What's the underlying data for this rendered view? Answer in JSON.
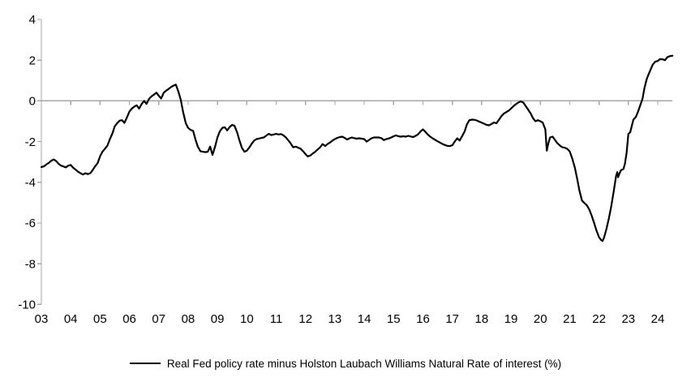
{
  "colors": {
    "line": "#000000",
    "axis": "#a6a6a6",
    "text": "#000000",
    "background": "#ffffff"
  },
  "legend": {
    "label": "Real Fed policy rate minus Holston Laubach Williams Natural Rate of interest (%)"
  },
  "chart_data": {
    "type": "line",
    "xlabel": "",
    "ylabel": "",
    "ylim": [
      -10,
      4
    ],
    "xlim": [
      2003.0,
      2024.6
    ],
    "grid": "zero-line-only",
    "legend_position": "bottom-center",
    "y_ticks": [
      4,
      2,
      0,
      -2,
      -4,
      -6,
      -8,
      -10
    ],
    "y_tick_labels": [
      "4",
      "2",
      "0",
      "-2",
      "-4",
      "-6",
      "-8",
      "-10"
    ],
    "x_tick_years": [
      2003,
      2004,
      2005,
      2006,
      2007,
      2008,
      2009,
      2010,
      2011,
      2012,
      2013,
      2014,
      2015,
      2016,
      2017,
      2018,
      2019,
      2020,
      2021,
      2022,
      2023,
      2024
    ],
    "x_tick_labels": [
      "03",
      "04",
      "05",
      "06",
      "07",
      "08",
      "09",
      "10",
      "11",
      "12",
      "13",
      "14",
      "15",
      "16",
      "17",
      "18",
      "19",
      "20",
      "21",
      "22",
      "23",
      "24"
    ],
    "series": [
      {
        "name": "Real Fed policy rate minus Holston Laubach Williams Natural Rate of interest (%)",
        "color": "#000000",
        "points": [
          [
            2003.0,
            -3.25
          ],
          [
            2003.08,
            -3.22
          ],
          [
            2003.17,
            -3.12
          ],
          [
            2003.25,
            -3.05
          ],
          [
            2003.33,
            -2.95
          ],
          [
            2003.42,
            -2.88
          ],
          [
            2003.5,
            -2.95
          ],
          [
            2003.58,
            -3.08
          ],
          [
            2003.67,
            -3.18
          ],
          [
            2003.75,
            -3.22
          ],
          [
            2003.83,
            -3.27
          ],
          [
            2003.92,
            -3.18
          ],
          [
            2004.0,
            -3.15
          ],
          [
            2004.08,
            -3.28
          ],
          [
            2004.17,
            -3.38
          ],
          [
            2004.25,
            -3.48
          ],
          [
            2004.33,
            -3.55
          ],
          [
            2004.42,
            -3.62
          ],
          [
            2004.5,
            -3.55
          ],
          [
            2004.58,
            -3.6
          ],
          [
            2004.67,
            -3.55
          ],
          [
            2004.75,
            -3.4
          ],
          [
            2004.83,
            -3.22
          ],
          [
            2004.92,
            -3.05
          ],
          [
            2005.0,
            -2.72
          ],
          [
            2005.08,
            -2.5
          ],
          [
            2005.17,
            -2.35
          ],
          [
            2005.25,
            -2.2
          ],
          [
            2005.33,
            -1.9
          ],
          [
            2005.42,
            -1.6
          ],
          [
            2005.5,
            -1.25
          ],
          [
            2005.58,
            -1.1
          ],
          [
            2005.67,
            -0.97
          ],
          [
            2005.75,
            -0.95
          ],
          [
            2005.83,
            -1.08
          ],
          [
            2005.92,
            -0.8
          ],
          [
            2006.0,
            -0.52
          ],
          [
            2006.08,
            -0.38
          ],
          [
            2006.17,
            -0.28
          ],
          [
            2006.25,
            -0.22
          ],
          [
            2006.33,
            -0.38
          ],
          [
            2006.42,
            -0.15
          ],
          [
            2006.5,
            0.0
          ],
          [
            2006.58,
            -0.15
          ],
          [
            2006.67,
            0.1
          ],
          [
            2006.75,
            0.22
          ],
          [
            2006.83,
            0.3
          ],
          [
            2006.92,
            0.4
          ],
          [
            2007.0,
            0.25
          ],
          [
            2007.08,
            0.12
          ],
          [
            2007.17,
            0.4
          ],
          [
            2007.25,
            0.5
          ],
          [
            2007.33,
            0.58
          ],
          [
            2007.42,
            0.68
          ],
          [
            2007.5,
            0.75
          ],
          [
            2007.58,
            0.8
          ],
          [
            2007.67,
            0.45
          ],
          [
            2007.75,
            0.05
          ],
          [
            2007.83,
            -0.55
          ],
          [
            2007.92,
            -1.1
          ],
          [
            2008.0,
            -1.33
          ],
          [
            2008.08,
            -1.42
          ],
          [
            2008.17,
            -1.47
          ],
          [
            2008.25,
            -1.9
          ],
          [
            2008.33,
            -2.25
          ],
          [
            2008.42,
            -2.48
          ],
          [
            2008.5,
            -2.5
          ],
          [
            2008.58,
            -2.52
          ],
          [
            2008.67,
            -2.5
          ],
          [
            2008.75,
            -2.25
          ],
          [
            2008.83,
            -2.65
          ],
          [
            2008.92,
            -2.25
          ],
          [
            2009.0,
            -1.8
          ],
          [
            2009.08,
            -1.5
          ],
          [
            2009.17,
            -1.32
          ],
          [
            2009.25,
            -1.3
          ],
          [
            2009.33,
            -1.45
          ],
          [
            2009.42,
            -1.28
          ],
          [
            2009.5,
            -1.18
          ],
          [
            2009.58,
            -1.22
          ],
          [
            2009.67,
            -1.55
          ],
          [
            2009.75,
            -1.95
          ],
          [
            2009.83,
            -2.3
          ],
          [
            2009.92,
            -2.5
          ],
          [
            2010.0,
            -2.45
          ],
          [
            2010.08,
            -2.3
          ],
          [
            2010.17,
            -2.1
          ],
          [
            2010.25,
            -1.95
          ],
          [
            2010.33,
            -1.88
          ],
          [
            2010.42,
            -1.85
          ],
          [
            2010.5,
            -1.82
          ],
          [
            2010.58,
            -1.8
          ],
          [
            2010.67,
            -1.7
          ],
          [
            2010.75,
            -1.62
          ],
          [
            2010.83,
            -1.68
          ],
          [
            2010.92,
            -1.65
          ],
          [
            2011.0,
            -1.62
          ],
          [
            2011.08,
            -1.65
          ],
          [
            2011.17,
            -1.63
          ],
          [
            2011.25,
            -1.7
          ],
          [
            2011.33,
            -1.8
          ],
          [
            2011.42,
            -1.95
          ],
          [
            2011.5,
            -2.1
          ],
          [
            2011.58,
            -2.28
          ],
          [
            2011.67,
            -2.25
          ],
          [
            2011.75,
            -2.3
          ],
          [
            2011.83,
            -2.35
          ],
          [
            2011.92,
            -2.48
          ],
          [
            2012.0,
            -2.62
          ],
          [
            2012.08,
            -2.73
          ],
          [
            2012.17,
            -2.68
          ],
          [
            2012.25,
            -2.58
          ],
          [
            2012.33,
            -2.5
          ],
          [
            2012.42,
            -2.38
          ],
          [
            2012.5,
            -2.28
          ],
          [
            2012.58,
            -2.12
          ],
          [
            2012.67,
            -2.22
          ],
          [
            2012.75,
            -2.12
          ],
          [
            2012.83,
            -2.05
          ],
          [
            2012.92,
            -1.95
          ],
          [
            2013.0,
            -1.88
          ],
          [
            2013.08,
            -1.82
          ],
          [
            2013.17,
            -1.78
          ],
          [
            2013.25,
            -1.76
          ],
          [
            2013.33,
            -1.82
          ],
          [
            2013.42,
            -1.9
          ],
          [
            2013.5,
            -1.84
          ],
          [
            2013.58,
            -1.8
          ],
          [
            2013.67,
            -1.84
          ],
          [
            2013.75,
            -1.86
          ],
          [
            2013.83,
            -1.84
          ],
          [
            2013.92,
            -1.86
          ],
          [
            2014.0,
            -1.88
          ],
          [
            2014.08,
            -2.0
          ],
          [
            2014.17,
            -1.92
          ],
          [
            2014.25,
            -1.84
          ],
          [
            2014.33,
            -1.8
          ],
          [
            2014.42,
            -1.8
          ],
          [
            2014.5,
            -1.8
          ],
          [
            2014.58,
            -1.83
          ],
          [
            2014.67,
            -1.93
          ],
          [
            2014.75,
            -1.88
          ],
          [
            2014.83,
            -1.85
          ],
          [
            2014.92,
            -1.8
          ],
          [
            2015.0,
            -1.74
          ],
          [
            2015.08,
            -1.7
          ],
          [
            2015.17,
            -1.74
          ],
          [
            2015.25,
            -1.76
          ],
          [
            2015.33,
            -1.74
          ],
          [
            2015.42,
            -1.76
          ],
          [
            2015.5,
            -1.72
          ],
          [
            2015.58,
            -1.75
          ],
          [
            2015.67,
            -1.78
          ],
          [
            2015.75,
            -1.72
          ],
          [
            2015.83,
            -1.65
          ],
          [
            2015.92,
            -1.5
          ],
          [
            2016.0,
            -1.4
          ],
          [
            2016.08,
            -1.52
          ],
          [
            2016.17,
            -1.66
          ],
          [
            2016.25,
            -1.76
          ],
          [
            2016.33,
            -1.84
          ],
          [
            2016.42,
            -1.92
          ],
          [
            2016.5,
            -1.99
          ],
          [
            2016.58,
            -2.05
          ],
          [
            2016.67,
            -2.12
          ],
          [
            2016.75,
            -2.17
          ],
          [
            2016.83,
            -2.21
          ],
          [
            2016.92,
            -2.22
          ],
          [
            2017.0,
            -2.18
          ],
          [
            2017.08,
            -2.0
          ],
          [
            2017.17,
            -1.84
          ],
          [
            2017.25,
            -1.95
          ],
          [
            2017.33,
            -1.75
          ],
          [
            2017.42,
            -1.5
          ],
          [
            2017.5,
            -1.15
          ],
          [
            2017.58,
            -0.95
          ],
          [
            2017.67,
            -0.92
          ],
          [
            2017.75,
            -0.93
          ],
          [
            2017.83,
            -0.96
          ],
          [
            2017.92,
            -1.02
          ],
          [
            2018.0,
            -1.07
          ],
          [
            2018.08,
            -1.12
          ],
          [
            2018.17,
            -1.18
          ],
          [
            2018.25,
            -1.2
          ],
          [
            2018.33,
            -1.14
          ],
          [
            2018.42,
            -1.06
          ],
          [
            2018.5,
            -1.1
          ],
          [
            2018.58,
            -0.95
          ],
          [
            2018.67,
            -0.76
          ],
          [
            2018.75,
            -0.63
          ],
          [
            2018.83,
            -0.56
          ],
          [
            2018.92,
            -0.48
          ],
          [
            2019.0,
            -0.38
          ],
          [
            2019.08,
            -0.27
          ],
          [
            2019.17,
            -0.16
          ],
          [
            2019.25,
            -0.08
          ],
          [
            2019.33,
            -0.03
          ],
          [
            2019.42,
            -0.08
          ],
          [
            2019.5,
            -0.25
          ],
          [
            2019.58,
            -0.42
          ],
          [
            2019.67,
            -0.62
          ],
          [
            2019.75,
            -0.85
          ],
          [
            2019.83,
            -1.0
          ],
          [
            2019.92,
            -0.95
          ],
          [
            2020.0,
            -1.0
          ],
          [
            2020.08,
            -1.06
          ],
          [
            2020.17,
            -1.4
          ],
          [
            2020.22,
            -2.45
          ],
          [
            2020.27,
            -2.1
          ],
          [
            2020.33,
            -1.8
          ],
          [
            2020.42,
            -1.76
          ],
          [
            2020.5,
            -1.92
          ],
          [
            2020.58,
            -2.08
          ],
          [
            2020.67,
            -2.2
          ],
          [
            2020.75,
            -2.28
          ],
          [
            2020.83,
            -2.3
          ],
          [
            2020.92,
            -2.36
          ],
          [
            2021.0,
            -2.48
          ],
          [
            2021.08,
            -2.8
          ],
          [
            2021.17,
            -3.25
          ],
          [
            2021.25,
            -3.8
          ],
          [
            2021.33,
            -4.4
          ],
          [
            2021.42,
            -4.9
          ],
          [
            2021.5,
            -5.02
          ],
          [
            2021.58,
            -5.12
          ],
          [
            2021.67,
            -5.35
          ],
          [
            2021.75,
            -5.65
          ],
          [
            2021.83,
            -6.0
          ],
          [
            2021.92,
            -6.4
          ],
          [
            2022.0,
            -6.7
          ],
          [
            2022.08,
            -6.85
          ],
          [
            2022.12,
            -6.88
          ],
          [
            2022.17,
            -6.72
          ],
          [
            2022.25,
            -6.3
          ],
          [
            2022.33,
            -5.8
          ],
          [
            2022.42,
            -5.15
          ],
          [
            2022.5,
            -4.45
          ],
          [
            2022.58,
            -3.7
          ],
          [
            2022.62,
            -3.5
          ],
          [
            2022.65,
            -3.75
          ],
          [
            2022.71,
            -3.52
          ],
          [
            2022.75,
            -3.4
          ],
          [
            2022.83,
            -3.35
          ],
          [
            2022.88,
            -3.1
          ],
          [
            2022.94,
            -2.55
          ],
          [
            2023.0,
            -1.62
          ],
          [
            2023.06,
            -1.55
          ],
          [
            2023.12,
            -1.2
          ],
          [
            2023.17,
            -0.92
          ],
          [
            2023.25,
            -0.8
          ],
          [
            2023.33,
            -0.52
          ],
          [
            2023.42,
            -0.15
          ],
          [
            2023.48,
            0.1
          ],
          [
            2023.55,
            0.65
          ],
          [
            2023.63,
            1.1
          ],
          [
            2023.75,
            1.52
          ],
          [
            2023.83,
            1.78
          ],
          [
            2023.92,
            1.93
          ],
          [
            2024.0,
            1.96
          ],
          [
            2024.08,
            2.05
          ],
          [
            2024.17,
            2.04
          ],
          [
            2024.25,
            2.0
          ],
          [
            2024.33,
            2.15
          ],
          [
            2024.42,
            2.2
          ],
          [
            2024.5,
            2.22
          ]
        ]
      }
    ]
  }
}
